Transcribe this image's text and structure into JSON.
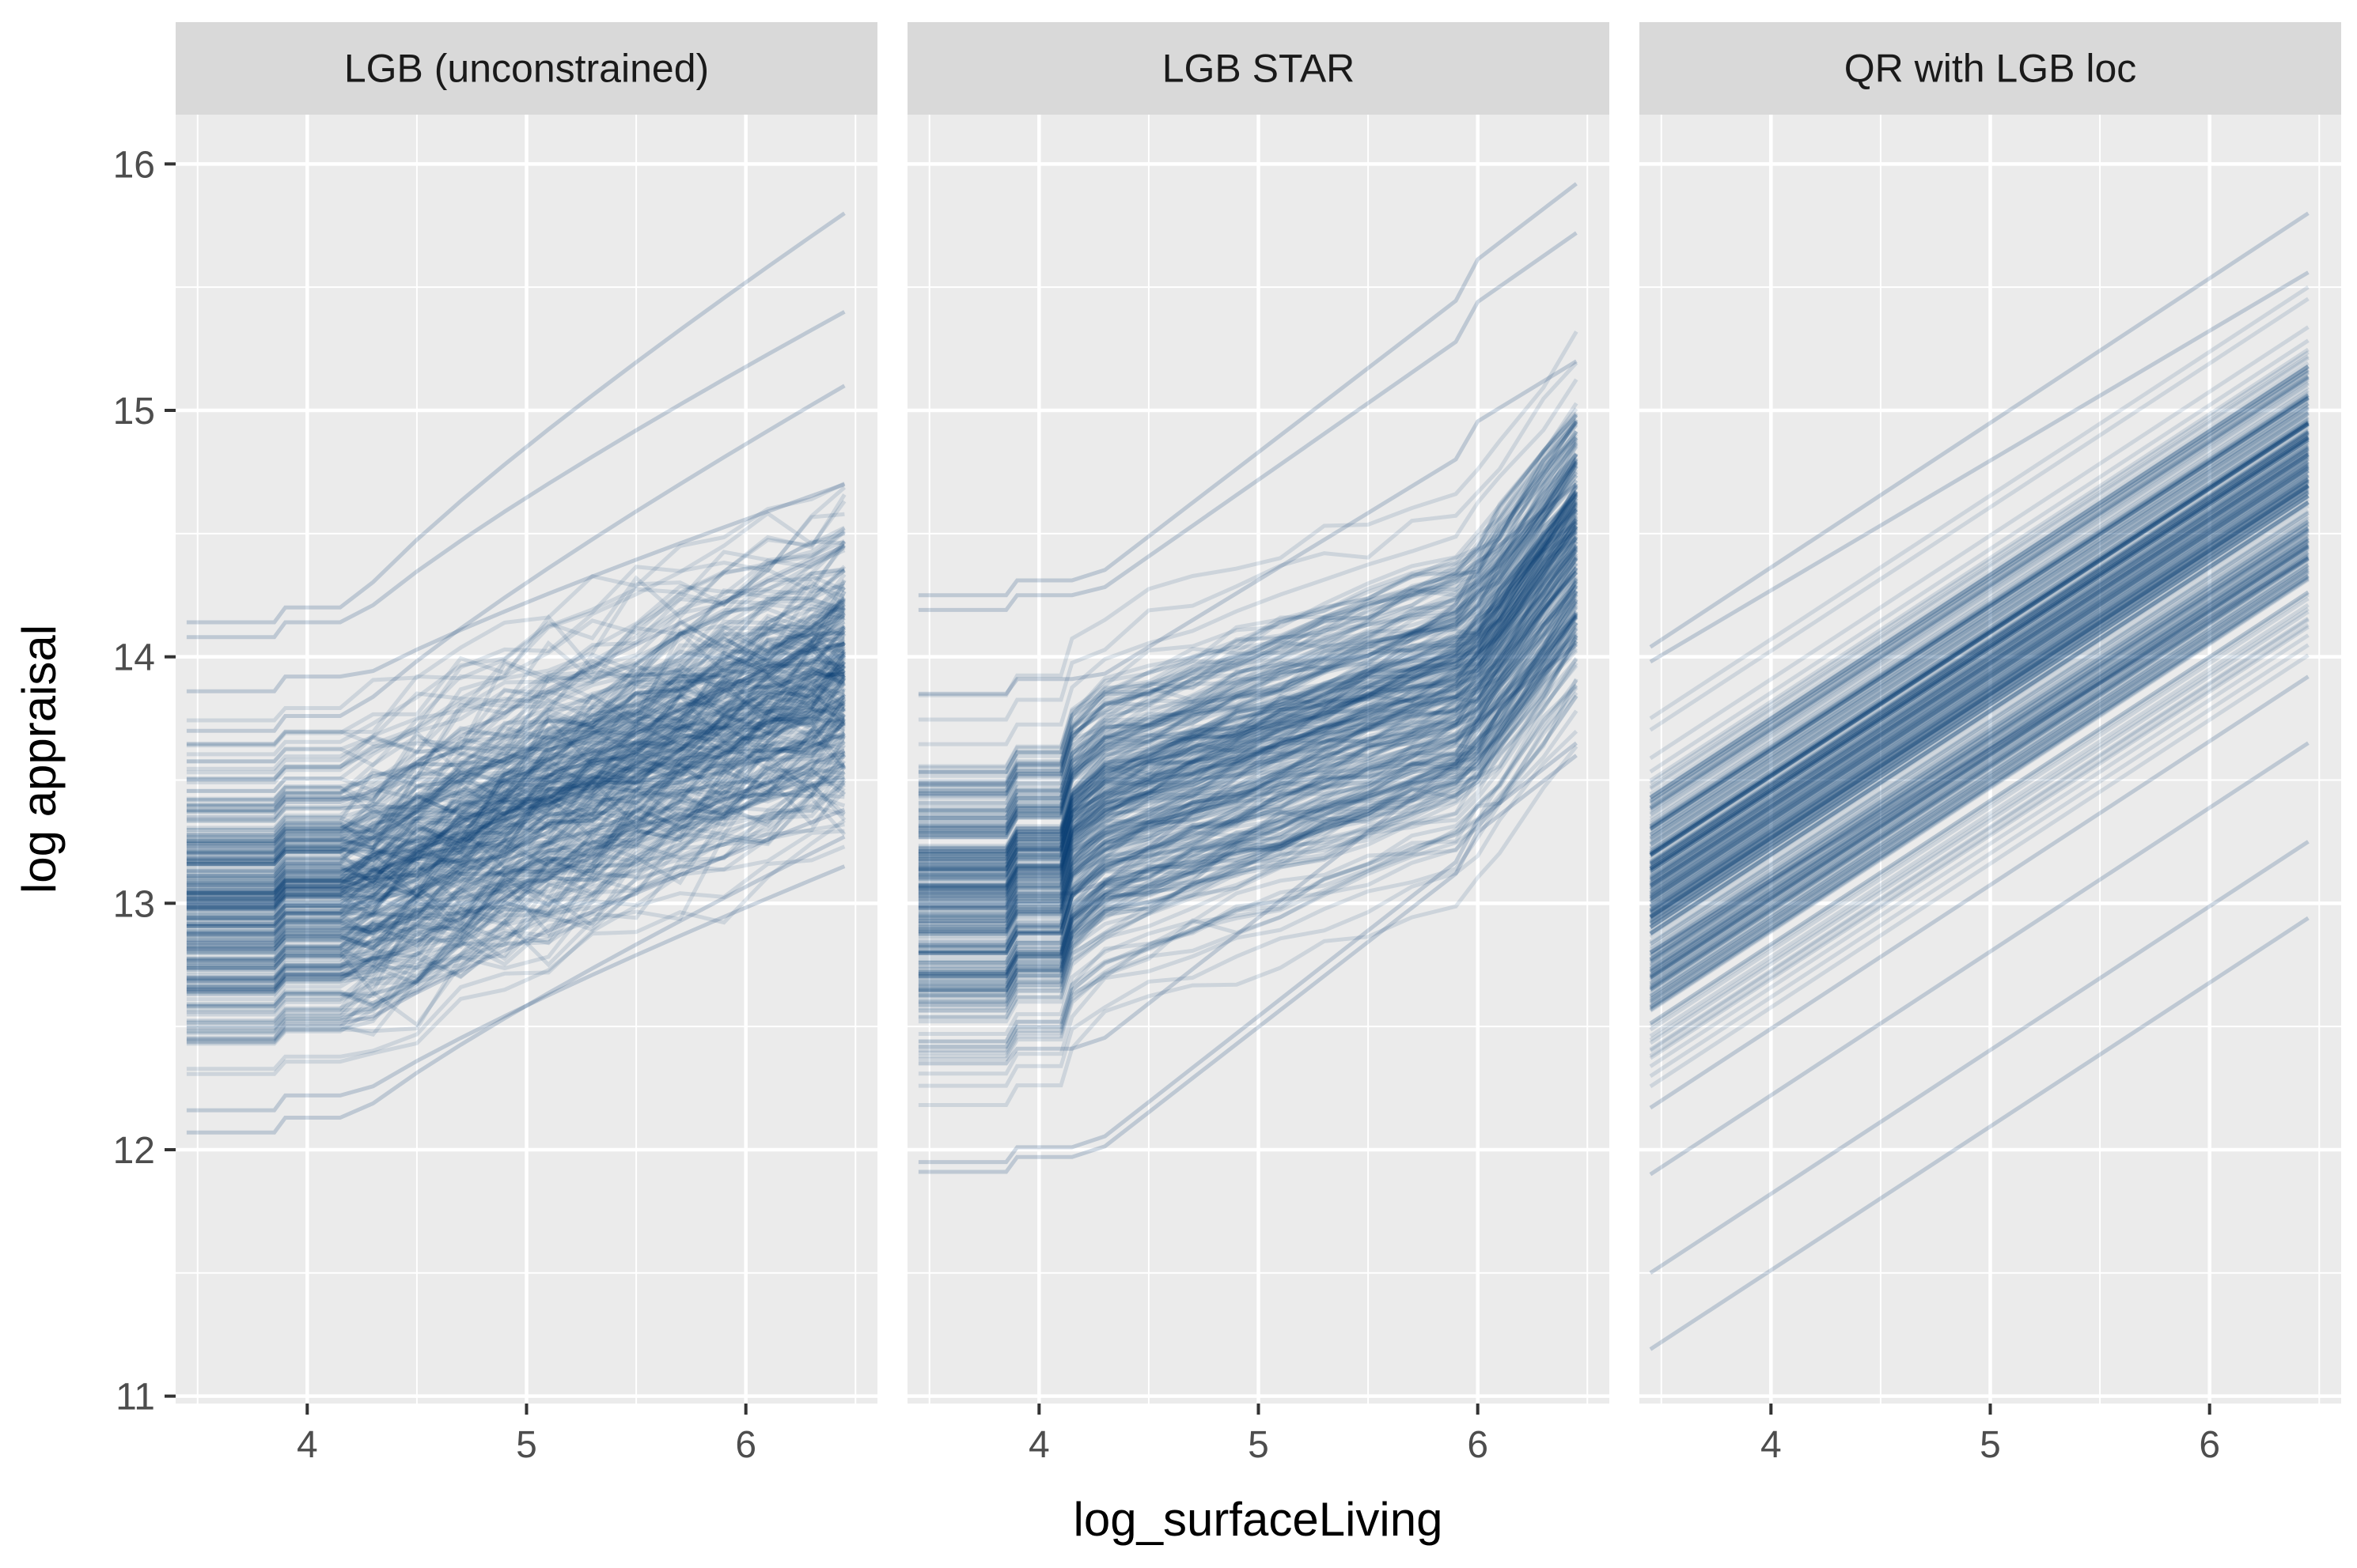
{
  "chart_data": {
    "type": "line",
    "description_free": true,
    "xlabel": "log_surfaceLiving",
    "ylabel": "log appraisal",
    "xlim": [
      3.4,
      6.6
    ],
    "ylim": [
      10.97,
      16.2
    ],
    "x_ticks": [
      4,
      5,
      6
    ],
    "y_ticks": [
      11,
      12,
      13,
      14,
      15,
      16
    ],
    "line_color": "#0b3a73",
    "panel_background": "#ebebeb",
    "strip_background": "#d9d9d9",
    "grid_color": "#ffffff",
    "panels": [
      {
        "title": "LGB (unconstrained)",
        "model": "unconstrained",
        "x": [
          3.45,
          3.6,
          3.85,
          3.9,
          4.1,
          4.15,
          4.3,
          4.5,
          4.7,
          4.9,
          5.1,
          5.3,
          5.5,
          5.7,
          5.9,
          6.1,
          6.3,
          6.45
        ],
        "series": [
          {
            "name": "c1",
            "start": 13.0,
            "end": 14.1
          },
          {
            "name": "c2",
            "start": 13.86,
            "end": 14.7
          },
          {
            "name": "c3",
            "start": 14.14,
            "end": 15.8
          },
          {
            "name": "c4",
            "start": 14.08,
            "end": 15.4
          },
          {
            "name": "c5",
            "start": 12.16,
            "end": 13.15
          },
          {
            "name": "c6",
            "start": 12.07,
            "end": 13.27
          },
          {
            "name": "c7",
            "start": 12.65,
            "end": 13.62
          },
          {
            "name": "c8",
            "start": 13.7,
            "end": 15.1
          },
          {
            "name": "c9",
            "start": 13.35,
            "end": 14.45
          },
          {
            "name": "c10",
            "start": 12.45,
            "end": 13.38
          }
        ]
      },
      {
        "title": "LGB STAR",
        "model": "star",
        "x": [
          3.45,
          3.6,
          3.85,
          3.9,
          4.1,
          4.15,
          4.3,
          4.5,
          4.7,
          4.9,
          5.1,
          5.3,
          5.5,
          5.7,
          5.9,
          6.0,
          6.1,
          6.3,
          6.45
        ],
        "series": [
          {
            "name": "s1",
            "start": 12.98,
            "end": 14.6
          },
          {
            "name": "s2",
            "start": 14.25,
            "end": 15.82
          },
          {
            "name": "s3",
            "start": 14.19,
            "end": 15.62
          },
          {
            "name": "s4",
            "start": 11.95,
            "end": 13.55
          },
          {
            "name": "s5",
            "start": 11.91,
            "end": 13.5
          },
          {
            "name": "s6",
            "start": 13.85,
            "end": 15.1
          },
          {
            "name": "s7",
            "start": 12.35,
            "end": 13.95
          }
        ]
      },
      {
        "title": "QR with LGB loc",
        "model": "linear",
        "x": [
          3.45,
          6.45
        ],
        "series": [
          {
            "name": "q1",
            "start": 12.8,
            "end": 14.4
          },
          {
            "name": "q2",
            "start": 14.04,
            "end": 15.8
          },
          {
            "name": "q3",
            "start": 13.98,
            "end": 15.56
          },
          {
            "name": "q4",
            "start": 11.19,
            "end": 12.94
          },
          {
            "name": "q5",
            "start": 11.5,
            "end": 13.25
          },
          {
            "name": "q6",
            "start": 11.9,
            "end": 13.65
          },
          {
            "name": "q7",
            "start": 12.17,
            "end": 13.92
          }
        ]
      }
    ]
  }
}
